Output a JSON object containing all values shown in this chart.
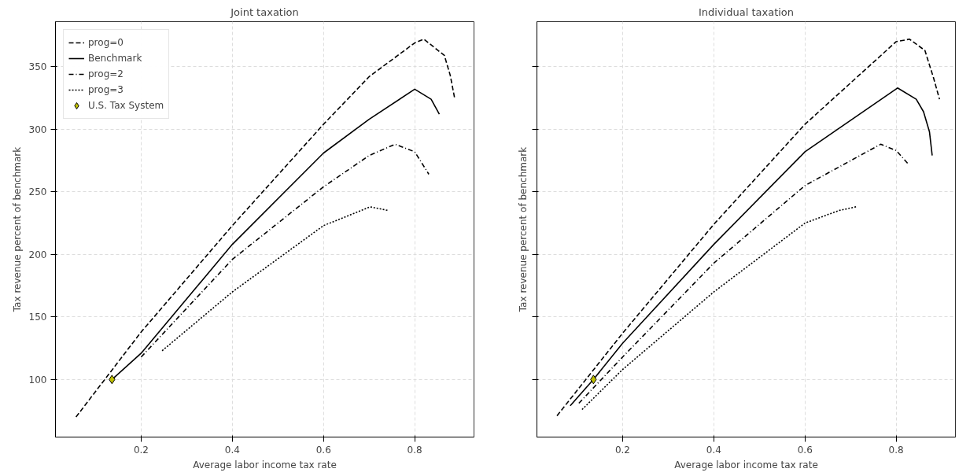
{
  "chart_data": [
    {
      "type": "line",
      "title": "Joint taxation",
      "xlabel": "Average labor income tax rate",
      "ylabel": "Tax revenue percent of benchmark",
      "xlim": [
        0.012,
        0.93
      ],
      "ylim": [
        54,
        386
      ],
      "xticks": [
        0.2,
        0.4,
        0.6,
        0.8
      ],
      "yticks": [
        100,
        150,
        200,
        250,
        300,
        350
      ],
      "grid": true,
      "legend": "top left",
      "series": [
        {
          "name": "prog=0",
          "color": "#000000",
          "line_style": "dashed",
          "x": [
            0.057,
            0.2,
            0.4,
            0.6,
            0.7,
            0.8,
            0.82,
            0.865,
            0.878,
            0.888
          ],
          "values": [
            70,
            138,
            223,
            304,
            342,
            369,
            372,
            359,
            343,
            324
          ]
        },
        {
          "name": "Benchmark",
          "color": "#000000",
          "line_style": "solid",
          "x": [
            0.136,
            0.2,
            0.4,
            0.6,
            0.7,
            0.8,
            0.836,
            0.854
          ],
          "values": [
            100,
            121,
            208,
            281,
            308,
            332,
            324,
            312
          ]
        },
        {
          "name": "prog=2",
          "color": "#000000",
          "line_style": "dashdot",
          "x": [
            0.2,
            0.4,
            0.6,
            0.7,
            0.757,
            0.8,
            0.831
          ],
          "values": [
            118,
            196,
            254,
            279,
            288,
            282,
            264
          ]
        },
        {
          "name": "prog=3",
          "color": "#000000",
          "line_style": "dotted",
          "x": [
            0.246,
            0.4,
            0.6,
            0.702,
            0.743
          ],
          "values": [
            123,
            170,
            223,
            238,
            235
          ]
        },
        {
          "name": "U.S. Tax System",
          "type": "scatter",
          "marker": "diamond",
          "color": "#bfbf00",
          "x": [
            0.136
          ],
          "values": [
            100
          ]
        }
      ]
    },
    {
      "type": "line",
      "title": "Individual taxation",
      "xlabel": "Average labor income tax rate",
      "ylabel": "Tax revenue percent of benchmark",
      "xlim": [
        0.012,
        0.93
      ],
      "ylim": [
        54,
        386
      ],
      "xticks": [
        0.2,
        0.4,
        0.6,
        0.8
      ],
      "yticks": [
        100,
        150,
        200,
        250,
        300,
        350
      ],
      "grid": true,
      "tick_labels": "x",
      "series": [
        {
          "color": "#000000",
          "line_style": "dashed",
          "x": [
            0.056,
            0.2,
            0.4,
            0.6,
            0.8,
            0.829,
            0.863,
            0.882,
            0.895
          ],
          "values": [
            71,
            137,
            224,
            304,
            370,
            372,
            363,
            341,
            324
          ]
        },
        {
          "color": "#000000",
          "line_style": "solid",
          "x": [
            0.085,
            0.136,
            0.2,
            0.4,
            0.6,
            0.803,
            0.844,
            0.86,
            0.873,
            0.879
          ],
          "values": [
            79,
            100,
            129,
            208,
            282,
            333,
            324,
            314,
            298,
            279
          ]
        },
        {
          "color": "#000000",
          "line_style": "dashdot",
          "x": [
            0.104,
            0.2,
            0.4,
            0.6,
            0.766,
            0.8,
            0.827
          ],
          "values": [
            81,
            118,
            193,
            255,
            288,
            283,
            272
          ]
        },
        {
          "color": "#000000",
          "line_style": "dotted",
          "x": [
            0.111,
            0.2,
            0.4,
            0.6,
            0.674,
            0.712
          ],
          "values": [
            76,
            108,
            170,
            225,
            235,
            238
          ]
        },
        {
          "type": "scatter",
          "marker": "diamond",
          "color": "#bfbf00",
          "x": [
            0.136
          ],
          "values": [
            100
          ]
        }
      ]
    }
  ]
}
